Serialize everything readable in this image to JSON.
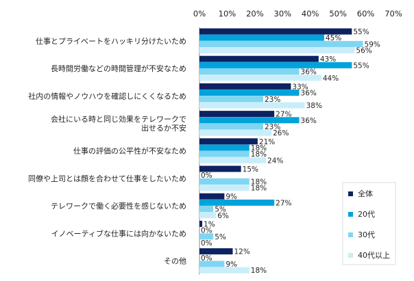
{
  "chart_data": {
    "type": "bar",
    "orientation": "horizontal",
    "title": "",
    "xlabel": "",
    "ylabel": "",
    "xlim": [
      0,
      70
    ],
    "ticks": [
      "0%",
      "10%",
      "20%",
      "30%",
      "40%",
      "50%",
      "60%",
      "70%"
    ],
    "grid": false,
    "legend_position": "bottom-right",
    "categories": [
      [
        "仕事とプライベートをハッキリ分けたいため"
      ],
      [
        "長時間労働などの時間管理が不安なため"
      ],
      [
        "社内の情報やノウハウを確認しにくくなるため"
      ],
      [
        "会社にいる時と同じ効果をテレワークで",
        "出せるか不安"
      ],
      [
        "仕事の評価の公平性が不安なため"
      ],
      [
        "同僚や上司とは顔を合わせて仕事をしたいため"
      ],
      [
        "テレワークで働く必要性を感じないため"
      ],
      [
        "イノベーティブな仕事には向かないため"
      ],
      [
        "その他"
      ]
    ],
    "series": [
      {
        "name": "全体",
        "color": "#0d2261",
        "values": [
          55,
          43,
          33,
          27,
          21,
          15,
          9,
          1,
          12
        ]
      },
      {
        "name": "20代",
        "color": "#00a3db",
        "values": [
          45,
          55,
          36,
          36,
          18,
          0,
          27,
          0,
          0
        ]
      },
      {
        "name": "30代",
        "color": "#7fd6f2",
        "values": [
          59,
          36,
          23,
          23,
          18,
          18,
          5,
          5,
          9
        ]
      },
      {
        "name": "40代以上",
        "color": "#c9eefa",
        "values": [
          56,
          44,
          38,
          26,
          24,
          18,
          6,
          0,
          18
        ]
      }
    ],
    "value_suffix": "%"
  }
}
